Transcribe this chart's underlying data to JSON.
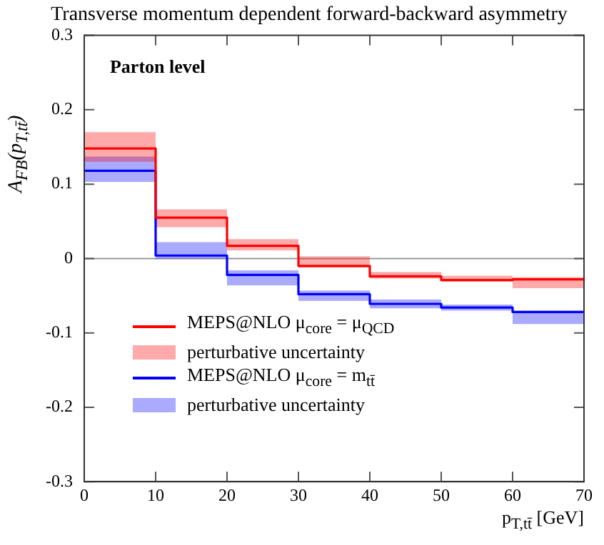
{
  "chart_data": {
    "type": "step",
    "title": "Transverse momentum dependent forward-backward asymmetry",
    "xlabel": "p$_{T,tt̄}$ [GeV]",
    "ylabel": "A$_{FB}$(p$_{T,tt̄}$)",
    "annotations": [
      "Parton level",
      "perturbative uncertainty",
      "perturbative uncertainty"
    ],
    "x": [
      0,
      10,
      20,
      30,
      40,
      50,
      60,
      70
    ],
    "series": [
      {
        "name": "MEPS@NLO μ$_{core}$ = μ$_{QCD}$",
        "color": "#ff0000",
        "values": [
          0.148,
          0.055,
          0.017,
          -0.01,
          -0.024,
          -0.029,
          -0.028,
          -0.028
        ],
        "lower": [
          0.13,
          0.042,
          0.011,
          -0.012,
          -0.027,
          -0.031,
          -0.04,
          -0.04
        ],
        "upper": [
          0.17,
          0.066,
          0.026,
          0.003,
          -0.018,
          -0.023,
          -0.025,
          -0.025
        ]
      },
      {
        "name": "MEPS@NLO μ$_{core}$ = m$_{tt̄}$",
        "color": "#0000ff",
        "values": [
          0.118,
          0.004,
          -0.022,
          -0.048,
          -0.061,
          -0.066,
          -0.072,
          -0.072
        ],
        "lower": [
          0.103,
          0,
          -0.036,
          -0.057,
          -0.067,
          -0.07,
          -0.088,
          -0.088
        ],
        "upper": [
          0.137,
          0.022,
          -0.016,
          -0.043,
          -0.055,
          -0.062,
          -0.07,
          -0.07
        ]
      }
    ],
    "xlim": [
      0,
      70
    ],
    "ylim": [
      -0.3,
      0.3
    ],
    "xticks": [
      0,
      10,
      20,
      30,
      40,
      50,
      60,
      70
    ],
    "yticks": [
      -0.3,
      -0.2,
      -0.1,
      0,
      0.1,
      0.2,
      0.3
    ],
    "ref_lines": [
      {
        "axis": "y",
        "value": 0,
        "color": "#999999"
      }
    ],
    "legend": "bottom left",
    "grid": false
  }
}
